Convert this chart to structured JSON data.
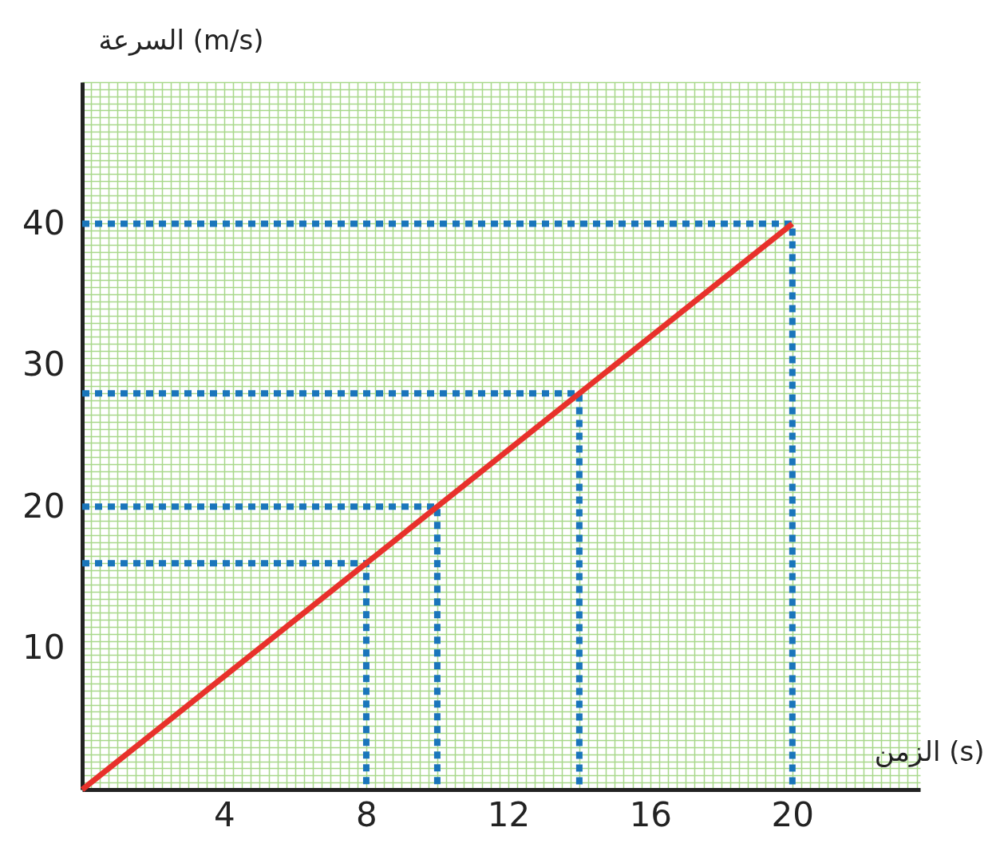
{
  "chart_data": {
    "type": "line",
    "xlabel": "الزمن (s)",
    "ylabel": "السرعة (m/s)",
    "xlim": [
      0,
      23.6
    ],
    "ylim": [
      0,
      50
    ],
    "xticks": [
      4,
      8,
      12,
      16,
      20
    ],
    "yticks": [
      10,
      20,
      30,
      40
    ],
    "grid": true,
    "marker": "none",
    "series": [
      {
        "color": "#1a75bb",
        "line_style": "dotted",
        "x": [
          0,
          8,
          8
        ],
        "values": [
          16,
          16,
          0
        ]
      },
      {
        "color": "#1a75bb",
        "line_style": "dotted",
        "x": [
          0,
          10,
          10
        ],
        "values": [
          20,
          20,
          0
        ]
      },
      {
        "color": "#1a75bb",
        "line_style": "dotted",
        "x": [
          0,
          14,
          14
        ],
        "values": [
          28,
          28,
          0
        ]
      },
      {
        "color": "#1a75bb",
        "line_style": "dotted",
        "x": [
          0,
          20,
          20
        ],
        "values": [
          40,
          40,
          0
        ]
      },
      {
        "color": "#e8312b",
        "line_style": "solid",
        "x": [
          0,
          20
        ],
        "values": [
          0,
          40
        ]
      }
    ]
  }
}
